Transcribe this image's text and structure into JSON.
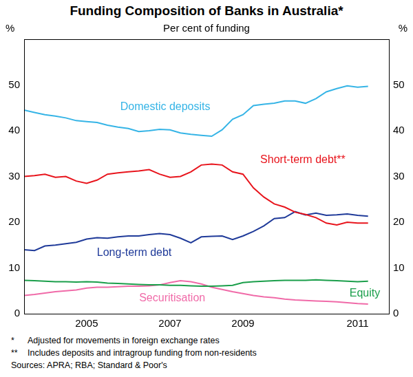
{
  "chart_data": {
    "type": "line",
    "title": "Funding Composition of Banks in Australia*",
    "subtitle": "Per cent of funding",
    "ylabel": "%",
    "categories": [
      null,
      null,
      null,
      null,
      null,
      null,
      "2005",
      null,
      null,
      null,
      null,
      null,
      null,
      null,
      "2007",
      null,
      null,
      null,
      null,
      null,
      null,
      "2009",
      null,
      null,
      null,
      null,
      null,
      null,
      null,
      null,
      null,
      null,
      "2011",
      null,
      null,
      null
    ],
    "series": [
      {
        "name": "Domestic deposits",
        "color": "#35b4e6",
        "values": [
          44.5,
          44,
          43.5,
          43.2,
          42.8,
          42.2,
          42,
          41.8,
          41.2,
          40.8,
          40.5,
          39.8,
          40,
          40.3,
          40.2,
          39.5,
          39.2,
          39,
          38.8,
          40.2,
          42.5,
          43.5,
          45.5,
          45.8,
          46,
          46.5,
          46.5,
          46,
          47,
          48.5,
          49.2,
          49.8,
          49.5,
          49.7,
          null,
          null
        ]
      },
      {
        "name": "Short-term debt**",
        "color": "#e8141c",
        "values": [
          30,
          30.2,
          30.5,
          29.8,
          30,
          29,
          28.5,
          29.2,
          30.5,
          30.8,
          31,
          31.2,
          31.5,
          30.5,
          29.8,
          30,
          31,
          32.5,
          32.7,
          32.5,
          31,
          30.5,
          27.5,
          25.5,
          24,
          23.3,
          22.2,
          21.7,
          21,
          19.8,
          19.4,
          20,
          19.8,
          19.8,
          null,
          null
        ]
      },
      {
        "name": "Long-term debt",
        "color": "#1f3a99",
        "values": [
          14,
          13.8,
          14.8,
          15,
          15.3,
          15.6,
          16.3,
          16.6,
          16.5,
          16.8,
          17,
          17,
          17.3,
          17.5,
          17.3,
          16.5,
          15.5,
          16.8,
          16.9,
          17,
          16.2,
          17,
          18,
          19.2,
          20.8,
          21,
          22.3,
          21.6,
          22,
          21.5,
          21.6,
          21.8,
          21.5,
          21.3,
          null,
          null
        ]
      },
      {
        "name": "Equity",
        "color": "#1a9e4a",
        "values": [
          7.3,
          7.2,
          7.1,
          7,
          7,
          6.9,
          7,
          6.9,
          6.7,
          6.6,
          6.5,
          6.4,
          6.3,
          6.3,
          6.2,
          6.2,
          6.1,
          6,
          6,
          6.1,
          6.2,
          6.8,
          7,
          7.1,
          7.2,
          7.3,
          7.3,
          7.3,
          7.4,
          7.3,
          7.2,
          7.1,
          7,
          7.1,
          null,
          null
        ]
      },
      {
        "name": "Securitisation",
        "color": "#f06aa8",
        "values": [
          4,
          4.2,
          4.5,
          4.8,
          5,
          5.2,
          5.6,
          5.8,
          5.8,
          5.9,
          6,
          6,
          6.1,
          6.3,
          6.8,
          7.2,
          7,
          6.5,
          5.8,
          5.3,
          4.8,
          4.4,
          4,
          3.7,
          3.5,
          3.2,
          3,
          2.9,
          2.8,
          2.7,
          2.6,
          2.4,
          2.2,
          2.1,
          null,
          null
        ]
      }
    ],
    "ylim": [
      0,
      60
    ],
    "yticks": [
      0,
      10,
      20,
      30,
      40,
      50
    ],
    "y2lim": [
      0,
      60
    ],
    "y2ticks": [
      0,
      10,
      20,
      30,
      40,
      50
    ],
    "grid": false,
    "notes": [
      {
        "marker": "*",
        "text": "Adjusted for movements in foreign exchange rates"
      },
      {
        "marker": "**",
        "text": "Includes deposits and intragroup funding from non-residents"
      }
    ],
    "sources": "Sources: APRA; RBA; Standard & Poor's"
  }
}
